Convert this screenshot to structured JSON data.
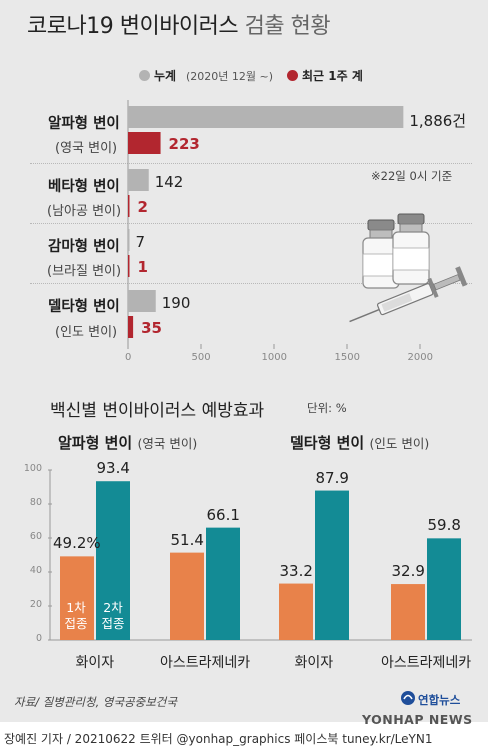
{
  "title_main": "코로나19 변이바이러스",
  "title_rest": "검출 현황",
  "legend": {
    "cumulative": "누계",
    "cumulative_range": "(2020년 12월 ~)",
    "recent": "최근 1주 계",
    "colors": {
      "cumulative": "#b3b3b3",
      "recent": "#b2262f"
    }
  },
  "as_of_note": "※22일 0시 기준",
  "detection_unit": "건",
  "axis_ticks": [
    "0",
    "500",
    "1000",
    "1500",
    "2000"
  ],
  "chart_data": [
    {
      "type": "bar",
      "orientation": "horizontal",
      "title": "코로나19 변이바이러스 검출 현황",
      "categories": [
        "알파형 변이 (영국 변이)",
        "베타형 변이 (남아공 변이)",
        "감마형 변이 (브라질 변이)",
        "델타형 변이 (인도 변이)"
      ],
      "series": [
        {
          "name": "누계 (2020년 12월 ~)",
          "values": [
            1886,
            142,
            7,
            190
          ]
        },
        {
          "name": "최근 1주 계",
          "values": [
            223,
            2,
            1,
            35
          ]
        }
      ],
      "xlim": [
        0,
        2000
      ],
      "ticks": [
        0,
        500,
        1000,
        1500,
        2000
      ],
      "unit": "건"
    },
    {
      "type": "bar",
      "title": "백신별 변이바이러스 예방효과",
      "unit": "단위: %",
      "groups": [
        {
          "name": "알파형 변이 (영국 변이)",
          "categories": [
            "화이자",
            "아스트라제네카"
          ],
          "series": [
            {
              "name": "1차 접종",
              "values": [
                49.2,
                51.4
              ]
            },
            {
              "name": "2차 접종",
              "values": [
                93.4,
                66.1
              ]
            }
          ]
        },
        {
          "name": "델타형 변이 (인도 변이)",
          "categories": [
            "화이자",
            "아스트라제네카"
          ],
          "series": [
            {
              "name": "1차 접종",
              "values": [
                33.2,
                32.9
              ]
            },
            {
              "name": "2차 접종",
              "values": [
                87.9,
                59.8
              ]
            }
          ]
        }
      ],
      "ylim": [
        0,
        100
      ],
      "ticks": [
        0,
        20,
        40,
        60,
        80,
        100
      ],
      "colors": {
        "dose1": "#e8824a",
        "dose2": "#138b95"
      }
    }
  ],
  "variants": [
    {
      "name": "알파형 변이",
      "sub": "(영국 변이)",
      "cum_label": "1,886건",
      "recent_label": "223"
    },
    {
      "name": "베타형 변이",
      "sub": "(남아공 변이)",
      "cum_label": "142",
      "recent_label": "2"
    },
    {
      "name": "감마형 변이",
      "sub": "(브라질 변이)",
      "cum_label": "7",
      "recent_label": "1"
    },
    {
      "name": "델타형 변이",
      "sub": "(인도 변이)",
      "cum_label": "190",
      "recent_label": "35"
    }
  ],
  "efficacy": {
    "title": "백신별 변이바이러스 예방효과",
    "unit": "단위: %",
    "yticks": [
      "0",
      "20",
      "40",
      "60",
      "80",
      "100"
    ],
    "groups": [
      {
        "name": "알파형 변이",
        "sub": "(영국 변이)",
        "vaccines": [
          {
            "name": "화이자",
            "dose1_label": "49.2%",
            "dose2_label": "93.4"
          },
          {
            "name": "아스트라제네카",
            "dose1_label": "51.4",
            "dose2_label": "66.1"
          }
        ]
      },
      {
        "name": "델타형 변이",
        "sub": "(인도 변이)",
        "vaccines": [
          {
            "name": "화이자",
            "dose1_label": "33.2",
            "dose2_label": "87.9"
          },
          {
            "name": "아스트라제네카",
            "dose1_label": "32.9",
            "dose2_label": "59.8"
          }
        ]
      }
    ],
    "dose1_in_bar": [
      "1차",
      "접종"
    ],
    "dose2_in_bar": [
      "2차",
      "접종"
    ]
  },
  "source": "자료/ 질병관리청, 영국공중보건국",
  "footer": "장예진 기자 / 20210622 트위터 @yonhap_graphics  페이스북 tuney.kr/LeYN1",
  "logo": {
    "ko": "연합뉴스",
    "en": "YONHAP NEWS"
  },
  "icons": [
    "vaccine-vials-icon",
    "syringe-icon",
    "yonhap-logo-icon"
  ]
}
